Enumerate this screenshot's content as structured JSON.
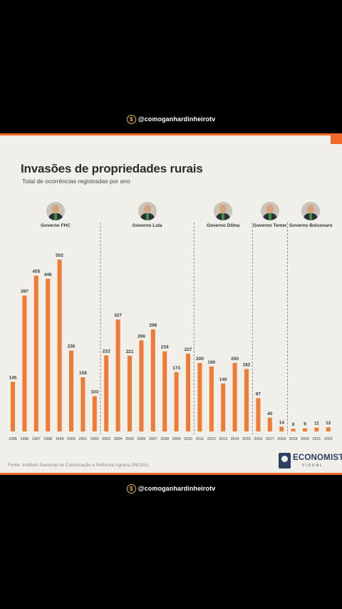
{
  "handle": "@comoganhardinheirotv",
  "coin_symbol": "$",
  "title": "Invasões de propriedades rurais",
  "subtitle": "Total de ocorrências registradas por ano",
  "source": "Fonte: Instituto Nacional de Colonização e Reforma Agrária (INCRA)",
  "logo": {
    "word": "ECONOMISTA",
    "sub": "VISUAL"
  },
  "colors": {
    "bar": "#ef7b34",
    "accent": "#ef6a2a",
    "background": "#f1efe9",
    "divider": "#555555"
  },
  "governments": [
    {
      "label": "Governo FHC",
      "start": "1995",
      "end": "2002"
    },
    {
      "label": "Governo Lula",
      "start": "2003",
      "end": "2010"
    },
    {
      "label": "Governo Dilma",
      "start": "2011",
      "end": "2015"
    },
    {
      "label": "Governo Temer",
      "start": "2016",
      "end": "2018"
    },
    {
      "label": "Governo Bolsonaro",
      "start": "2019",
      "end": "2022"
    }
  ],
  "chart_data": {
    "type": "bar",
    "title": "Invasões de propriedades rurais",
    "subtitle": "Total de ocorrências registradas por ano",
    "categories": [
      "1995",
      "1996",
      "1997",
      "1998",
      "1999",
      "2000",
      "2001",
      "2002",
      "2003",
      "2004",
      "2005",
      "2006",
      "2007",
      "2008",
      "2009",
      "2010",
      "2011",
      "2012",
      "2013",
      "2014",
      "2015",
      "2016",
      "2017",
      "2018",
      "2019",
      "2020",
      "2021",
      "2022"
    ],
    "values": [
      145,
      397,
      455,
      446,
      502,
      236,
      158,
      103,
      222,
      327,
      221,
      266,
      298,
      234,
      173,
      227,
      200,
      190,
      140,
      200,
      182,
      97,
      40,
      14,
      8,
      9,
      11,
      12
    ],
    "ylim": [
      0,
      502
    ],
    "grid": false,
    "dividers_after": [
      "2002",
      "2010",
      "2015",
      "2018"
    ]
  }
}
